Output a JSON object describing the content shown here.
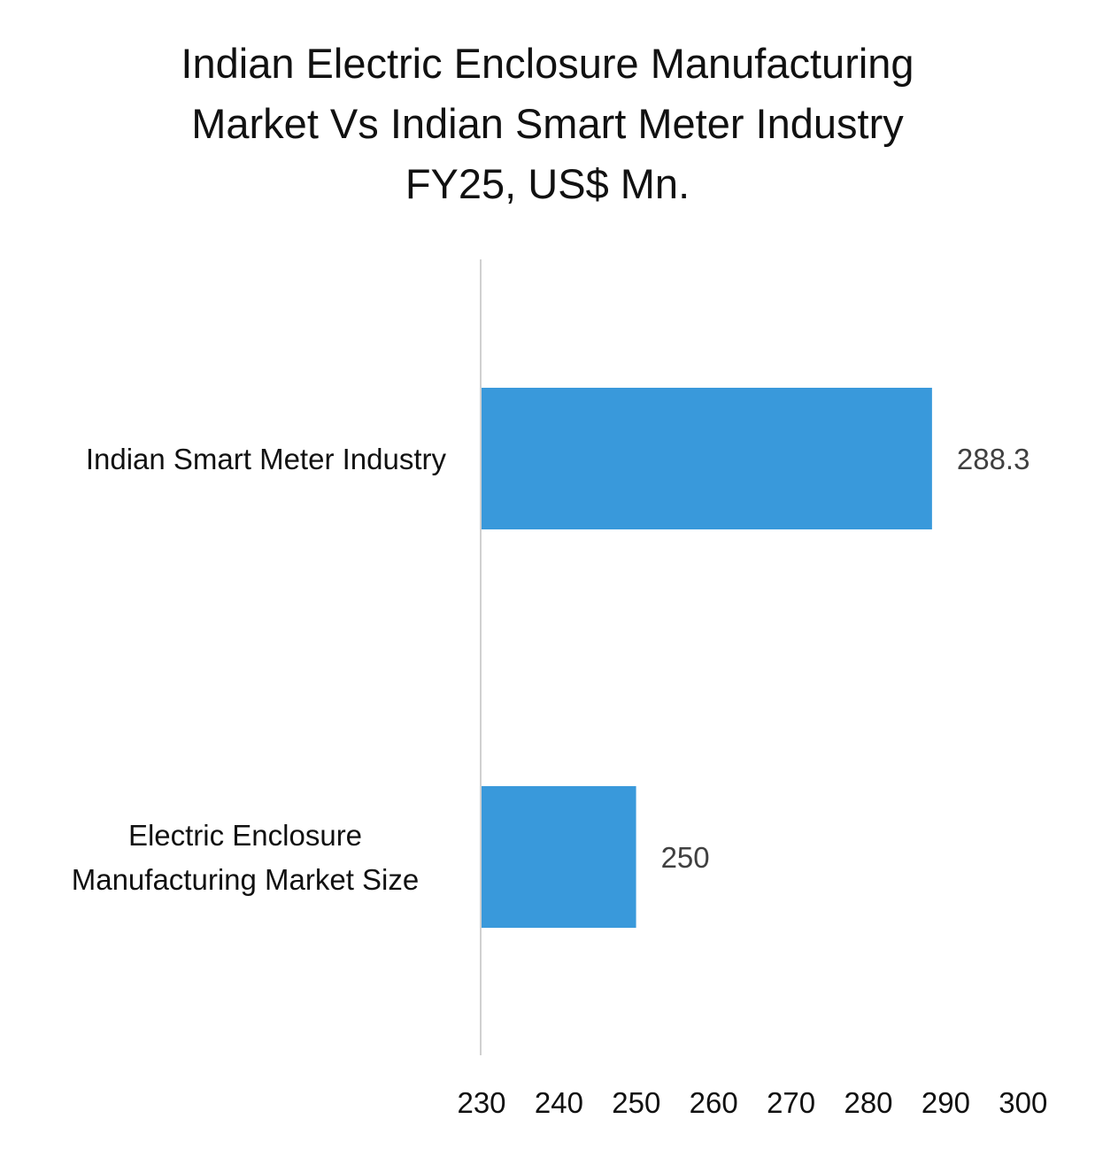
{
  "chart_data": {
    "type": "bar",
    "orientation": "horizontal",
    "title_lines": [
      "Indian Electric Enclosure Manufacturing",
      "Market Vs Indian Smart Meter Industry",
      "FY25, US$ Mn."
    ],
    "categories": [
      {
        "label_lines": [
          "Indian Smart Meter Industry"
        ],
        "value": 288.3,
        "value_label": "288.3"
      },
      {
        "label_lines": [
          "Electric Enclosure",
          "Manufacturing Market Size"
        ],
        "value": 250,
        "value_label": "250"
      }
    ],
    "xlim": [
      230,
      300
    ],
    "x_ticks": [
      230,
      240,
      250,
      260,
      270,
      280,
      290,
      300
    ],
    "grid": false,
    "bar_color": "#3999DB",
    "axis_color": "#D0D0D0"
  }
}
